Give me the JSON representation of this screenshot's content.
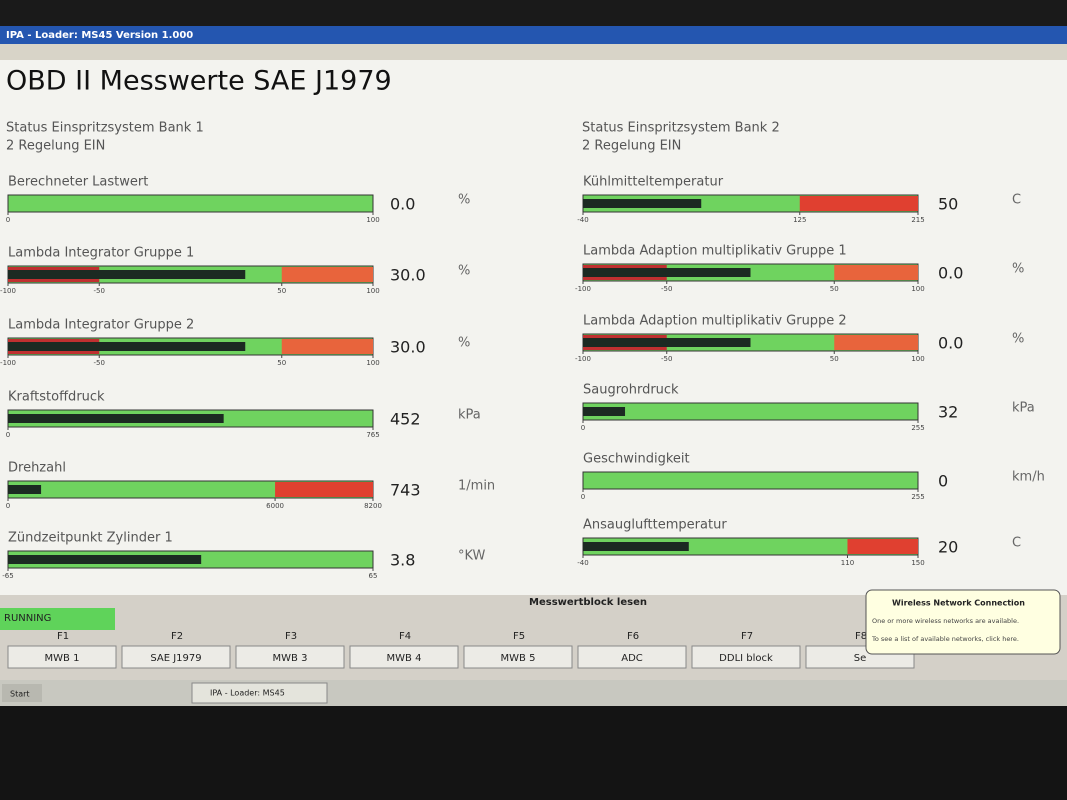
{
  "window_title": "IPA - Loader: MS45 Version 1.000",
  "page_title": "OBD II Messwerte SAE J1979",
  "status_left": [
    "Status Einspritzsystem Bank 1",
    "2 Regelung EIN"
  ],
  "status_right": [
    "Status Einspritzsystem Bank 2",
    "2 Regelung EIN"
  ],
  "gauges_left": [
    {
      "label": "Berechneter Lastwert",
      "value": {
        "value": 0,
        "label": "0.0"
      },
      "unit": "%",
      "ticks": [
        0,
        100
      ],
      "zones": []
    },
    {
      "label": "Lambda Integrator Gruppe 1",
      "value": {
        "value": 30,
        "label": "30.0"
      },
      "unit": "%",
      "ticks": [
        -100,
        -50,
        50,
        100
      ],
      "zones": [
        {
          "from": -100,
          "to": -50,
          "color": "#c03030"
        },
        {
          "from": 50,
          "to": 100,
          "color": "#e8643c"
        }
      ]
    },
    {
      "label": "Lambda Integrator Gruppe 2",
      "value": {
        "value": 30,
        "label": "30.0"
      },
      "unit": "%",
      "ticks": [
        -100,
        -50,
        50,
        100
      ],
      "zones": [
        {
          "from": -100,
          "to": -50,
          "color": "#c03030"
        },
        {
          "from": 50,
          "to": 100,
          "color": "#e8643c"
        }
      ]
    },
    {
      "label": "Kraftstoffdruck",
      "value": 452,
      "unit": "kPa",
      "ticks": [
        0,
        765
      ],
      "zones": []
    },
    {
      "label": "Drehzahl",
      "value": 743,
      "unit": "1/min",
      "ticks": [
        0,
        6000,
        8200
      ],
      "zones": [
        {
          "from": 6000,
          "to": 8200,
          "color": "#e04030"
        }
      ]
    },
    {
      "label": "Zündzeitpunkt Zylinder 1",
      "value": 3.8,
      "unit": "°KW",
      "ticks": [
        -65,
        65
      ],
      "zones": []
    }
  ],
  "gauges_right": [
    {
      "label": "Kühlmitteltemperatur",
      "value": 50,
      "unit": "C",
      "ticks": [
        -40,
        125,
        215
      ],
      "zones": [
        {
          "from": 125,
          "to": 215,
          "color": "#e04030"
        }
      ]
    },
    {
      "label": "Lambda Adaption multiplikativ Gruppe 1",
      "value": {
        "value": 0,
        "label": "0.0"
      },
      "unit": "%",
      "ticks": [
        -100,
        -50,
        50,
        100
      ],
      "zones": [
        {
          "from": -100,
          "to": -50,
          "color": "#c03030"
        },
        {
          "from": 50,
          "to": 100,
          "color": "#e8643c"
        }
      ]
    },
    {
      "label": "Lambda Adaption multiplikativ Gruppe 2",
      "value": {
        "value": 0,
        "label": "0.0"
      },
      "unit": "%",
      "ticks": [
        -100,
        -50,
        50,
        100
      ],
      "zones": [
        {
          "from": -100,
          "to": -50,
          "color": "#c03030"
        },
        {
          "from": 50,
          "to": 100,
          "color": "#e8643c"
        }
      ]
    },
    {
      "label": "Saugrohrdruck",
      "value": 32,
      "unit": "kPa",
      "ticks": [
        0,
        255
      ],
      "zones": []
    },
    {
      "label": "Geschwindigkeit",
      "value": 0,
      "unit": "km/h",
      "ticks": [
        0,
        255
      ],
      "zones": []
    },
    {
      "label": "Ansauglufttemperatur",
      "value": 20,
      "unit": "C",
      "ticks": [
        -40,
        110,
        150
      ],
      "zones": [
        {
          "from": 110,
          "to": 150,
          "color": "#e04030"
        }
      ]
    }
  ],
  "footer": {
    "status": "RUNNING",
    "group_title": "Messwertblock lesen",
    "keys": [
      {
        "key": "F1",
        "button": "MWB 1"
      },
      {
        "key": "F2",
        "button": "SAE J1979"
      },
      {
        "key": "F3",
        "button": "MWB 3"
      },
      {
        "key": "F4",
        "button": "MWB 4"
      },
      {
        "key": "F5",
        "button": "MWB 5"
      },
      {
        "key": "F6",
        "button": "ADC"
      },
      {
        "key": "F7",
        "button": "DDLI block"
      },
      {
        "key": "F8",
        "button": "Se"
      }
    ]
  },
  "notification": {
    "title": "Wireless Network Connection",
    "line1": "One or more wireless networks are available.",
    "line2": "To see a list of available networks, click here."
  },
  "taskbar": {
    "start": "Start",
    "item": "IPA - Loader: MS45"
  }
}
